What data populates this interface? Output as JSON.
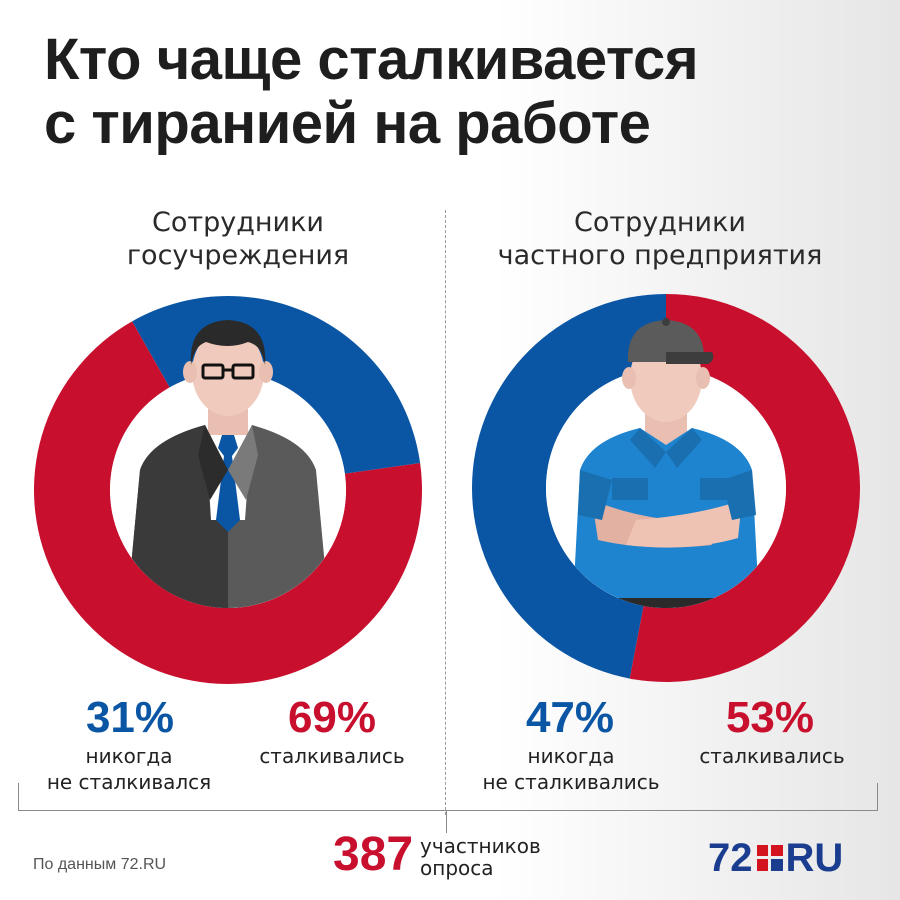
{
  "title": {
    "line1": "Кто чаще сталкивается",
    "line2": "с тиранией на работе"
  },
  "chart_data": [
    {
      "type": "pie",
      "variant": "donut",
      "title_line1": "Сотрудники",
      "title_line2": "госучреждения",
      "slices": [
        {
          "label_line1": "никогда",
          "label_line2": "не сталкивался",
          "value": 31,
          "display": "31%",
          "color": "#0b56a4"
        },
        {
          "label_line1": "сталкивались",
          "label_line2": "",
          "value": 69,
          "display": "69%",
          "color": "#c8102e"
        }
      ]
    },
    {
      "type": "pie",
      "variant": "donut",
      "title_line1": "Сотрудники",
      "title_line2": "частного предприятия",
      "slices": [
        {
          "label_line1": "никогда",
          "label_line2": "не сталкивались",
          "value": 47,
          "display": "47%",
          "color": "#0b56a4"
        },
        {
          "label_line1": "сталкивались",
          "label_line2": "",
          "value": 53,
          "display": "53%",
          "color": "#c8102e"
        }
      ]
    }
  ],
  "total": {
    "number": "387",
    "label_line1": "участников",
    "label_line2": "опроса"
  },
  "source": "По данным 72.RU",
  "logo": {
    "number": "72",
    "suffix": "RU"
  },
  "colors": {
    "blue": "#0b56a4",
    "red": "#c8102e",
    "logo_blue": "#1a3d8f",
    "logo_red": "#d3141f"
  }
}
